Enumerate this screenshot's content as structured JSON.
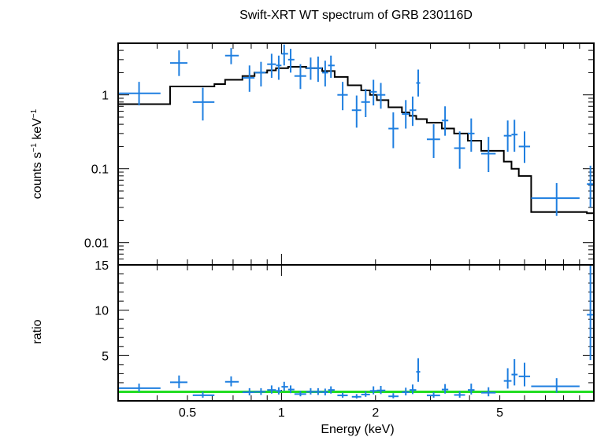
{
  "chart_data": [
    {
      "type": "scatter",
      "panel": "spectrum",
      "title": "Swift-XRT WT spectrum of GRB 230116D",
      "xlabel": "Energy (keV)",
      "ylabel": "counts s⁻¹ keV⁻¹",
      "ylabel_parts": {
        "main": "counts s",
        "exp1": "−1",
        "mid": " keV",
        "exp2": "−1"
      },
      "xscale": "log",
      "yscale": "log",
      "xlim": [
        0.3,
        10
      ],
      "ylim": [
        0.005,
        5
      ],
      "yticks": [
        {
          "value": 0.01,
          "label": "0.01"
        },
        {
          "value": 0.1,
          "label": "0.1"
        },
        {
          "value": 1,
          "label": "1"
        }
      ],
      "colors": {
        "data": "#1f7fe0",
        "model": "#000000"
      },
      "series": [
        {
          "kind": "data",
          "points": [
            {
              "x": 0.35,
              "xlo": 0.3,
              "xhi": 0.41,
              "y": 1.05,
              "ylo": 0.72,
              "yhi": 1.5
            },
            {
              "x": 0.47,
              "xlo": 0.44,
              "xhi": 0.5,
              "y": 2.7,
              "ylo": 1.8,
              "yhi": 4.0
            },
            {
              "x": 0.56,
              "xlo": 0.52,
              "xhi": 0.61,
              "y": 0.8,
              "ylo": 0.45,
              "yhi": 1.25
            },
            {
              "x": 0.69,
              "xlo": 0.66,
              "xhi": 0.73,
              "y": 3.4,
              "ylo": 2.6,
              "yhi": 4.3
            },
            {
              "x": 0.79,
              "xlo": 0.75,
              "xhi": 0.82,
              "y": 1.7,
              "ylo": 1.1,
              "yhi": 2.5
            },
            {
              "x": 0.86,
              "xlo": 0.82,
              "xhi": 0.89,
              "y": 2.0,
              "ylo": 1.3,
              "yhi": 2.8
            },
            {
              "x": 0.93,
              "xlo": 0.9,
              "xhi": 0.96,
              "y": 2.6,
              "ylo": 1.7,
              "yhi": 3.6
            },
            {
              "x": 0.98,
              "xlo": 0.96,
              "xhi": 1.0,
              "y": 2.5,
              "ylo": 1.6,
              "yhi": 3.4
            },
            {
              "x": 1.02,
              "xlo": 1.0,
              "xhi": 1.05,
              "y": 3.6,
              "ylo": 2.5,
              "yhi": 4.8
            },
            {
              "x": 1.07,
              "xlo": 1.05,
              "xhi": 1.1,
              "y": 3.0,
              "ylo": 2.0,
              "yhi": 4.2
            },
            {
              "x": 1.15,
              "xlo": 1.1,
              "xhi": 1.2,
              "y": 1.8,
              "ylo": 1.2,
              "yhi": 2.6
            },
            {
              "x": 1.24,
              "xlo": 1.2,
              "xhi": 1.28,
              "y": 2.3,
              "ylo": 1.6,
              "yhi": 3.2
            },
            {
              "x": 1.31,
              "xlo": 1.28,
              "xhi": 1.35,
              "y": 2.3,
              "ylo": 1.5,
              "yhi": 3.3
            },
            {
              "x": 1.38,
              "xlo": 1.35,
              "xhi": 1.41,
              "y": 2.0,
              "ylo": 1.3,
              "yhi": 2.9
            },
            {
              "x": 1.44,
              "xlo": 1.41,
              "xhi": 1.48,
              "y": 2.5,
              "ylo": 1.7,
              "yhi": 3.4
            },
            {
              "x": 1.57,
              "xlo": 1.51,
              "xhi": 1.63,
              "y": 1.0,
              "ylo": 0.62,
              "yhi": 1.5
            },
            {
              "x": 1.74,
              "xlo": 1.68,
              "xhi": 1.8,
              "y": 0.62,
              "ylo": 0.36,
              "yhi": 0.98
            },
            {
              "x": 1.86,
              "xlo": 1.8,
              "xhi": 1.92,
              "y": 0.8,
              "ylo": 0.5,
              "yhi": 1.2
            },
            {
              "x": 1.97,
              "xlo": 1.92,
              "xhi": 2.02,
              "y": 1.1,
              "ylo": 0.72,
              "yhi": 1.6
            },
            {
              "x": 2.08,
              "xlo": 2.02,
              "xhi": 2.15,
              "y": 1.0,
              "ylo": 0.65,
              "yhi": 1.45
            },
            {
              "x": 2.28,
              "xlo": 2.2,
              "xhi": 2.37,
              "y": 0.35,
              "ylo": 0.19,
              "yhi": 0.58
            },
            {
              "x": 2.5,
              "xlo": 2.43,
              "xhi": 2.57,
              "y": 0.55,
              "ylo": 0.35,
              "yhi": 0.85
            },
            {
              "x": 2.63,
              "xlo": 2.57,
              "xhi": 2.7,
              "y": 0.62,
              "ylo": 0.38,
              "yhi": 0.95
            },
            {
              "x": 2.74,
              "xlo": 2.7,
              "xhi": 2.78,
              "y": 1.45,
              "ylo": 0.95,
              "yhi": 2.2
            },
            {
              "x": 3.07,
              "xlo": 2.92,
              "xhi": 3.22,
              "y": 0.25,
              "ylo": 0.14,
              "yhi": 0.4
            },
            {
              "x": 3.34,
              "xlo": 3.26,
              "xhi": 3.42,
              "y": 0.45,
              "ylo": 0.28,
              "yhi": 0.7
            },
            {
              "x": 3.72,
              "xlo": 3.57,
              "xhi": 3.87,
              "y": 0.19,
              "ylo": 0.1,
              "yhi": 0.32
            },
            {
              "x": 4.05,
              "xlo": 3.95,
              "xhi": 4.15,
              "y": 0.3,
              "ylo": 0.17,
              "yhi": 0.48
            },
            {
              "x": 4.6,
              "xlo": 4.36,
              "xhi": 4.85,
              "y": 0.16,
              "ylo": 0.09,
              "yhi": 0.27
            },
            {
              "x": 5.3,
              "xlo": 5.15,
              "xhi": 5.45,
              "y": 0.28,
              "ylo": 0.17,
              "yhi": 0.45
            },
            {
              "x": 5.57,
              "xlo": 5.45,
              "xhi": 5.7,
              "y": 0.29,
              "ylo": 0.17,
              "yhi": 0.46
            },
            {
              "x": 6.0,
              "xlo": 5.75,
              "xhi": 6.25,
              "y": 0.2,
              "ylo": 0.12,
              "yhi": 0.32
            },
            {
              "x": 7.6,
              "xlo": 6.3,
              "xhi": 9.0,
              "y": 0.04,
              "ylo": 0.023,
              "yhi": 0.064
            },
            {
              "x": 9.75,
              "xlo": 9.5,
              "xhi": 10.0,
              "y": 0.062,
              "ylo": 0.03,
              "yhi": 0.11
            }
          ]
        },
        {
          "kind": "model",
          "steps": [
            {
              "x0": 0.3,
              "x1": 0.44,
              "y": 0.75
            },
            {
              "x0": 0.44,
              "x1": 0.61,
              "y": 1.3
            },
            {
              "x0": 0.61,
              "x1": 0.66,
              "y": 1.4
            },
            {
              "x0": 0.66,
              "x1": 0.75,
              "y": 1.6
            },
            {
              "x0": 0.75,
              "x1": 0.82,
              "y": 1.8
            },
            {
              "x0": 0.82,
              "x1": 0.9,
              "y": 2.0
            },
            {
              "x0": 0.9,
              "x1": 0.96,
              "y": 2.15
            },
            {
              "x0": 0.96,
              "x1": 1.05,
              "y": 2.3
            },
            {
              "x0": 1.05,
              "x1": 1.2,
              "y": 2.4
            },
            {
              "x0": 1.2,
              "x1": 1.35,
              "y": 2.3
            },
            {
              "x0": 1.35,
              "x1": 1.48,
              "y": 2.1
            },
            {
              "x0": 1.48,
              "x1": 1.63,
              "y": 1.75
            },
            {
              "x0": 1.63,
              "x1": 1.8,
              "y": 1.35
            },
            {
              "x0": 1.8,
              "x1": 1.92,
              "y": 1.15
            },
            {
              "x0": 1.92,
              "x1": 2.02,
              "y": 1.0
            },
            {
              "x0": 2.02,
              "x1": 2.2,
              "y": 0.85
            },
            {
              "x0": 2.2,
              "x1": 2.43,
              "y": 0.68
            },
            {
              "x0": 2.43,
              "x1": 2.57,
              "y": 0.58
            },
            {
              "x0": 2.57,
              "x1": 2.7,
              "y": 0.52
            },
            {
              "x0": 2.7,
              "x1": 2.92,
              "y": 0.47
            },
            {
              "x0": 2.92,
              "x1": 3.26,
              "y": 0.42
            },
            {
              "x0": 3.26,
              "x1": 3.57,
              "y": 0.35
            },
            {
              "x0": 3.57,
              "x1": 3.95,
              "y": 0.3
            },
            {
              "x0": 3.95,
              "x1": 4.36,
              "y": 0.24
            },
            {
              "x0": 4.36,
              "x1": 5.15,
              "y": 0.175
            },
            {
              "x0": 5.15,
              "x1": 5.45,
              "y": 0.125
            },
            {
              "x0": 5.45,
              "x1": 5.75,
              "y": 0.1
            },
            {
              "x0": 5.75,
              "x1": 6.3,
              "y": 0.08
            },
            {
              "x0": 6.3,
              "x1": 9.5,
              "y": 0.026
            },
            {
              "x0": 9.5,
              "x1": 10.0,
              "y": 0.025
            }
          ]
        }
      ]
    },
    {
      "type": "scatter",
      "panel": "ratio",
      "xlabel": "Energy (keV)",
      "ylabel": "ratio",
      "xscale": "log",
      "yscale": "linear",
      "xlim": [
        0.3,
        10
      ],
      "ylim": [
        0,
        15
      ],
      "yticks": [
        {
          "value": 5,
          "label": "5"
        },
        {
          "value": 10,
          "label": "10"
        },
        {
          "value": 15,
          "label": "15"
        }
      ],
      "xticks": [
        {
          "value": 0.5,
          "label": "0.5"
        },
        {
          "value": 1,
          "label": "1"
        },
        {
          "value": 2,
          "label": "2"
        },
        {
          "value": 5,
          "label": "5"
        }
      ],
      "reference_line": {
        "y": 1,
        "color": "#22dd22"
      },
      "colors": {
        "data": "#1f7fe0"
      },
      "series": [
        {
          "kind": "data",
          "points": [
            {
              "x": 0.35,
              "xlo": 0.3,
              "xhi": 0.41,
              "y": 1.4,
              "ylo": 1.0,
              "yhi": 1.9
            },
            {
              "x": 0.47,
              "xlo": 0.44,
              "xhi": 0.5,
              "y": 2.05,
              "ylo": 1.4,
              "yhi": 2.8
            },
            {
              "x": 0.56,
              "xlo": 0.52,
              "xhi": 0.61,
              "y": 0.62,
              "ylo": 0.35,
              "yhi": 1.0
            },
            {
              "x": 0.69,
              "xlo": 0.66,
              "xhi": 0.73,
              "y": 2.1,
              "ylo": 1.6,
              "yhi": 2.7
            },
            {
              "x": 0.79,
              "xlo": 0.75,
              "xhi": 0.82,
              "y": 0.95,
              "ylo": 0.6,
              "yhi": 1.4
            },
            {
              "x": 0.86,
              "xlo": 0.82,
              "xhi": 0.89,
              "y": 1.0,
              "ylo": 0.65,
              "yhi": 1.4
            },
            {
              "x": 0.93,
              "xlo": 0.9,
              "xhi": 0.96,
              "y": 1.2,
              "ylo": 0.8,
              "yhi": 1.7
            },
            {
              "x": 0.98,
              "xlo": 0.96,
              "xhi": 1.0,
              "y": 1.1,
              "ylo": 0.7,
              "yhi": 1.5
            },
            {
              "x": 1.02,
              "xlo": 1.0,
              "xhi": 1.05,
              "y": 1.55,
              "ylo": 1.1,
              "yhi": 2.1
            },
            {
              "x": 1.07,
              "xlo": 1.05,
              "xhi": 1.1,
              "y": 1.25,
              "ylo": 0.85,
              "yhi": 1.7
            },
            {
              "x": 1.15,
              "xlo": 1.1,
              "xhi": 1.2,
              "y": 0.75,
              "ylo": 0.5,
              "yhi": 1.1
            },
            {
              "x": 1.24,
              "xlo": 1.2,
              "xhi": 1.28,
              "y": 1.0,
              "ylo": 0.7,
              "yhi": 1.4
            },
            {
              "x": 1.31,
              "xlo": 1.28,
              "xhi": 1.35,
              "y": 1.0,
              "ylo": 0.65,
              "yhi": 1.4
            },
            {
              "x": 1.38,
              "xlo": 1.35,
              "xhi": 1.41,
              "y": 0.95,
              "ylo": 0.6,
              "yhi": 1.35
            },
            {
              "x": 1.44,
              "xlo": 1.41,
              "xhi": 1.48,
              "y": 1.2,
              "ylo": 0.8,
              "yhi": 1.6
            },
            {
              "x": 1.57,
              "xlo": 1.51,
              "xhi": 1.63,
              "y": 0.6,
              "ylo": 0.35,
              "yhi": 0.9
            },
            {
              "x": 1.74,
              "xlo": 1.68,
              "xhi": 1.8,
              "y": 0.45,
              "ylo": 0.25,
              "yhi": 0.75
            },
            {
              "x": 1.86,
              "xlo": 1.8,
              "xhi": 1.92,
              "y": 0.7,
              "ylo": 0.45,
              "yhi": 1.05
            },
            {
              "x": 1.97,
              "xlo": 1.92,
              "xhi": 2.02,
              "y": 1.1,
              "ylo": 0.72,
              "yhi": 1.6
            },
            {
              "x": 2.08,
              "xlo": 2.02,
              "xhi": 2.15,
              "y": 1.15,
              "ylo": 0.75,
              "yhi": 1.65
            },
            {
              "x": 2.28,
              "xlo": 2.2,
              "xhi": 2.37,
              "y": 0.5,
              "ylo": 0.28,
              "yhi": 0.85
            },
            {
              "x": 2.5,
              "xlo": 2.43,
              "xhi": 2.57,
              "y": 0.95,
              "ylo": 0.6,
              "yhi": 1.45
            },
            {
              "x": 2.63,
              "xlo": 2.57,
              "xhi": 2.7,
              "y": 1.2,
              "ylo": 0.75,
              "yhi": 1.8
            },
            {
              "x": 2.74,
              "xlo": 2.7,
              "xhi": 2.78,
              "y": 3.2,
              "ylo": 2.1,
              "yhi": 4.7
            },
            {
              "x": 3.07,
              "xlo": 2.92,
              "xhi": 3.22,
              "y": 0.6,
              "ylo": 0.35,
              "yhi": 0.95
            },
            {
              "x": 3.34,
              "xlo": 3.26,
              "xhi": 3.42,
              "y": 1.25,
              "ylo": 0.8,
              "yhi": 1.85
            },
            {
              "x": 3.72,
              "xlo": 3.57,
              "xhi": 3.87,
              "y": 0.65,
              "ylo": 0.35,
              "yhi": 1.05
            },
            {
              "x": 4.05,
              "xlo": 3.95,
              "xhi": 4.15,
              "y": 1.2,
              "ylo": 0.7,
              "yhi": 1.9
            },
            {
              "x": 4.6,
              "xlo": 4.36,
              "xhi": 4.85,
              "y": 0.9,
              "ylo": 0.5,
              "yhi": 1.5
            },
            {
              "x": 5.3,
              "xlo": 5.15,
              "xhi": 5.45,
              "y": 2.2,
              "ylo": 1.35,
              "yhi": 3.6
            },
            {
              "x": 5.57,
              "xlo": 5.45,
              "xhi": 5.7,
              "y": 2.9,
              "ylo": 1.7,
              "yhi": 4.6
            },
            {
              "x": 6.0,
              "xlo": 5.75,
              "xhi": 6.25,
              "y": 2.7,
              "ylo": 1.6,
              "yhi": 4.2
            },
            {
              "x": 7.6,
              "xlo": 6.3,
              "xhi": 9.0,
              "y": 1.6,
              "ylo": 0.9,
              "yhi": 2.5
            },
            {
              "x": 9.75,
              "xlo": 9.5,
              "xhi": 10.0,
              "y": 9.5,
              "ylo": 4.5,
              "yhi": 15.0
            }
          ]
        }
      ]
    }
  ]
}
